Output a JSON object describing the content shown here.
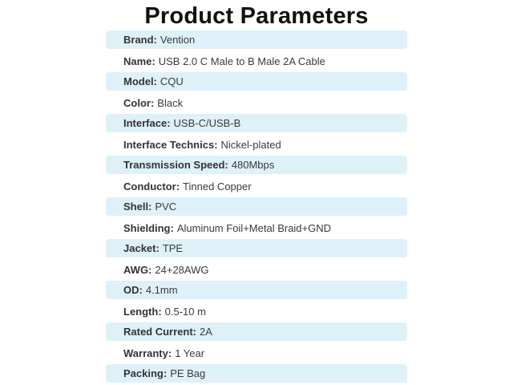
{
  "title": "Product Parameters",
  "colors": {
    "row_alt_background": "#def1f9",
    "row_background": "#ffffff",
    "title_text": "#111111",
    "body_text": "#3a3a3a"
  },
  "table": {
    "rows": [
      {
        "label": "Brand:",
        "value": "Vention"
      },
      {
        "label": "Name:",
        "value": "USB 2.0 C Male to B Male 2A Cable"
      },
      {
        "label": "Model:",
        "value": "CQU"
      },
      {
        "label": "Color:",
        "value": "Black"
      },
      {
        "label": "Interface:",
        "value": "USB-C/USB-B"
      },
      {
        "label": "Interface Technics:",
        "value": "Nickel-plated"
      },
      {
        "label": "Transmission Speed:",
        "value": "480Mbps"
      },
      {
        "label": "Conductor:",
        "value": "Tinned Copper"
      },
      {
        "label": "Shell:",
        "value": "PVC"
      },
      {
        "label": "Shielding:",
        "value": "Aluminum Foil+Metal Braid+GND"
      },
      {
        "label": "Jacket:",
        "value": "TPE"
      },
      {
        "label": "AWG:",
        "value": "24+28AWG"
      },
      {
        "label": "OD:",
        "value": "4.1mm"
      },
      {
        "label": "Length:",
        "value": "0.5-10 m"
      },
      {
        "label": "Rated Current:",
        "value": "2A"
      },
      {
        "label": "Warranty:",
        "value": "1 Year"
      },
      {
        "label": "Packing:",
        "value": "PE Bag"
      }
    ]
  }
}
